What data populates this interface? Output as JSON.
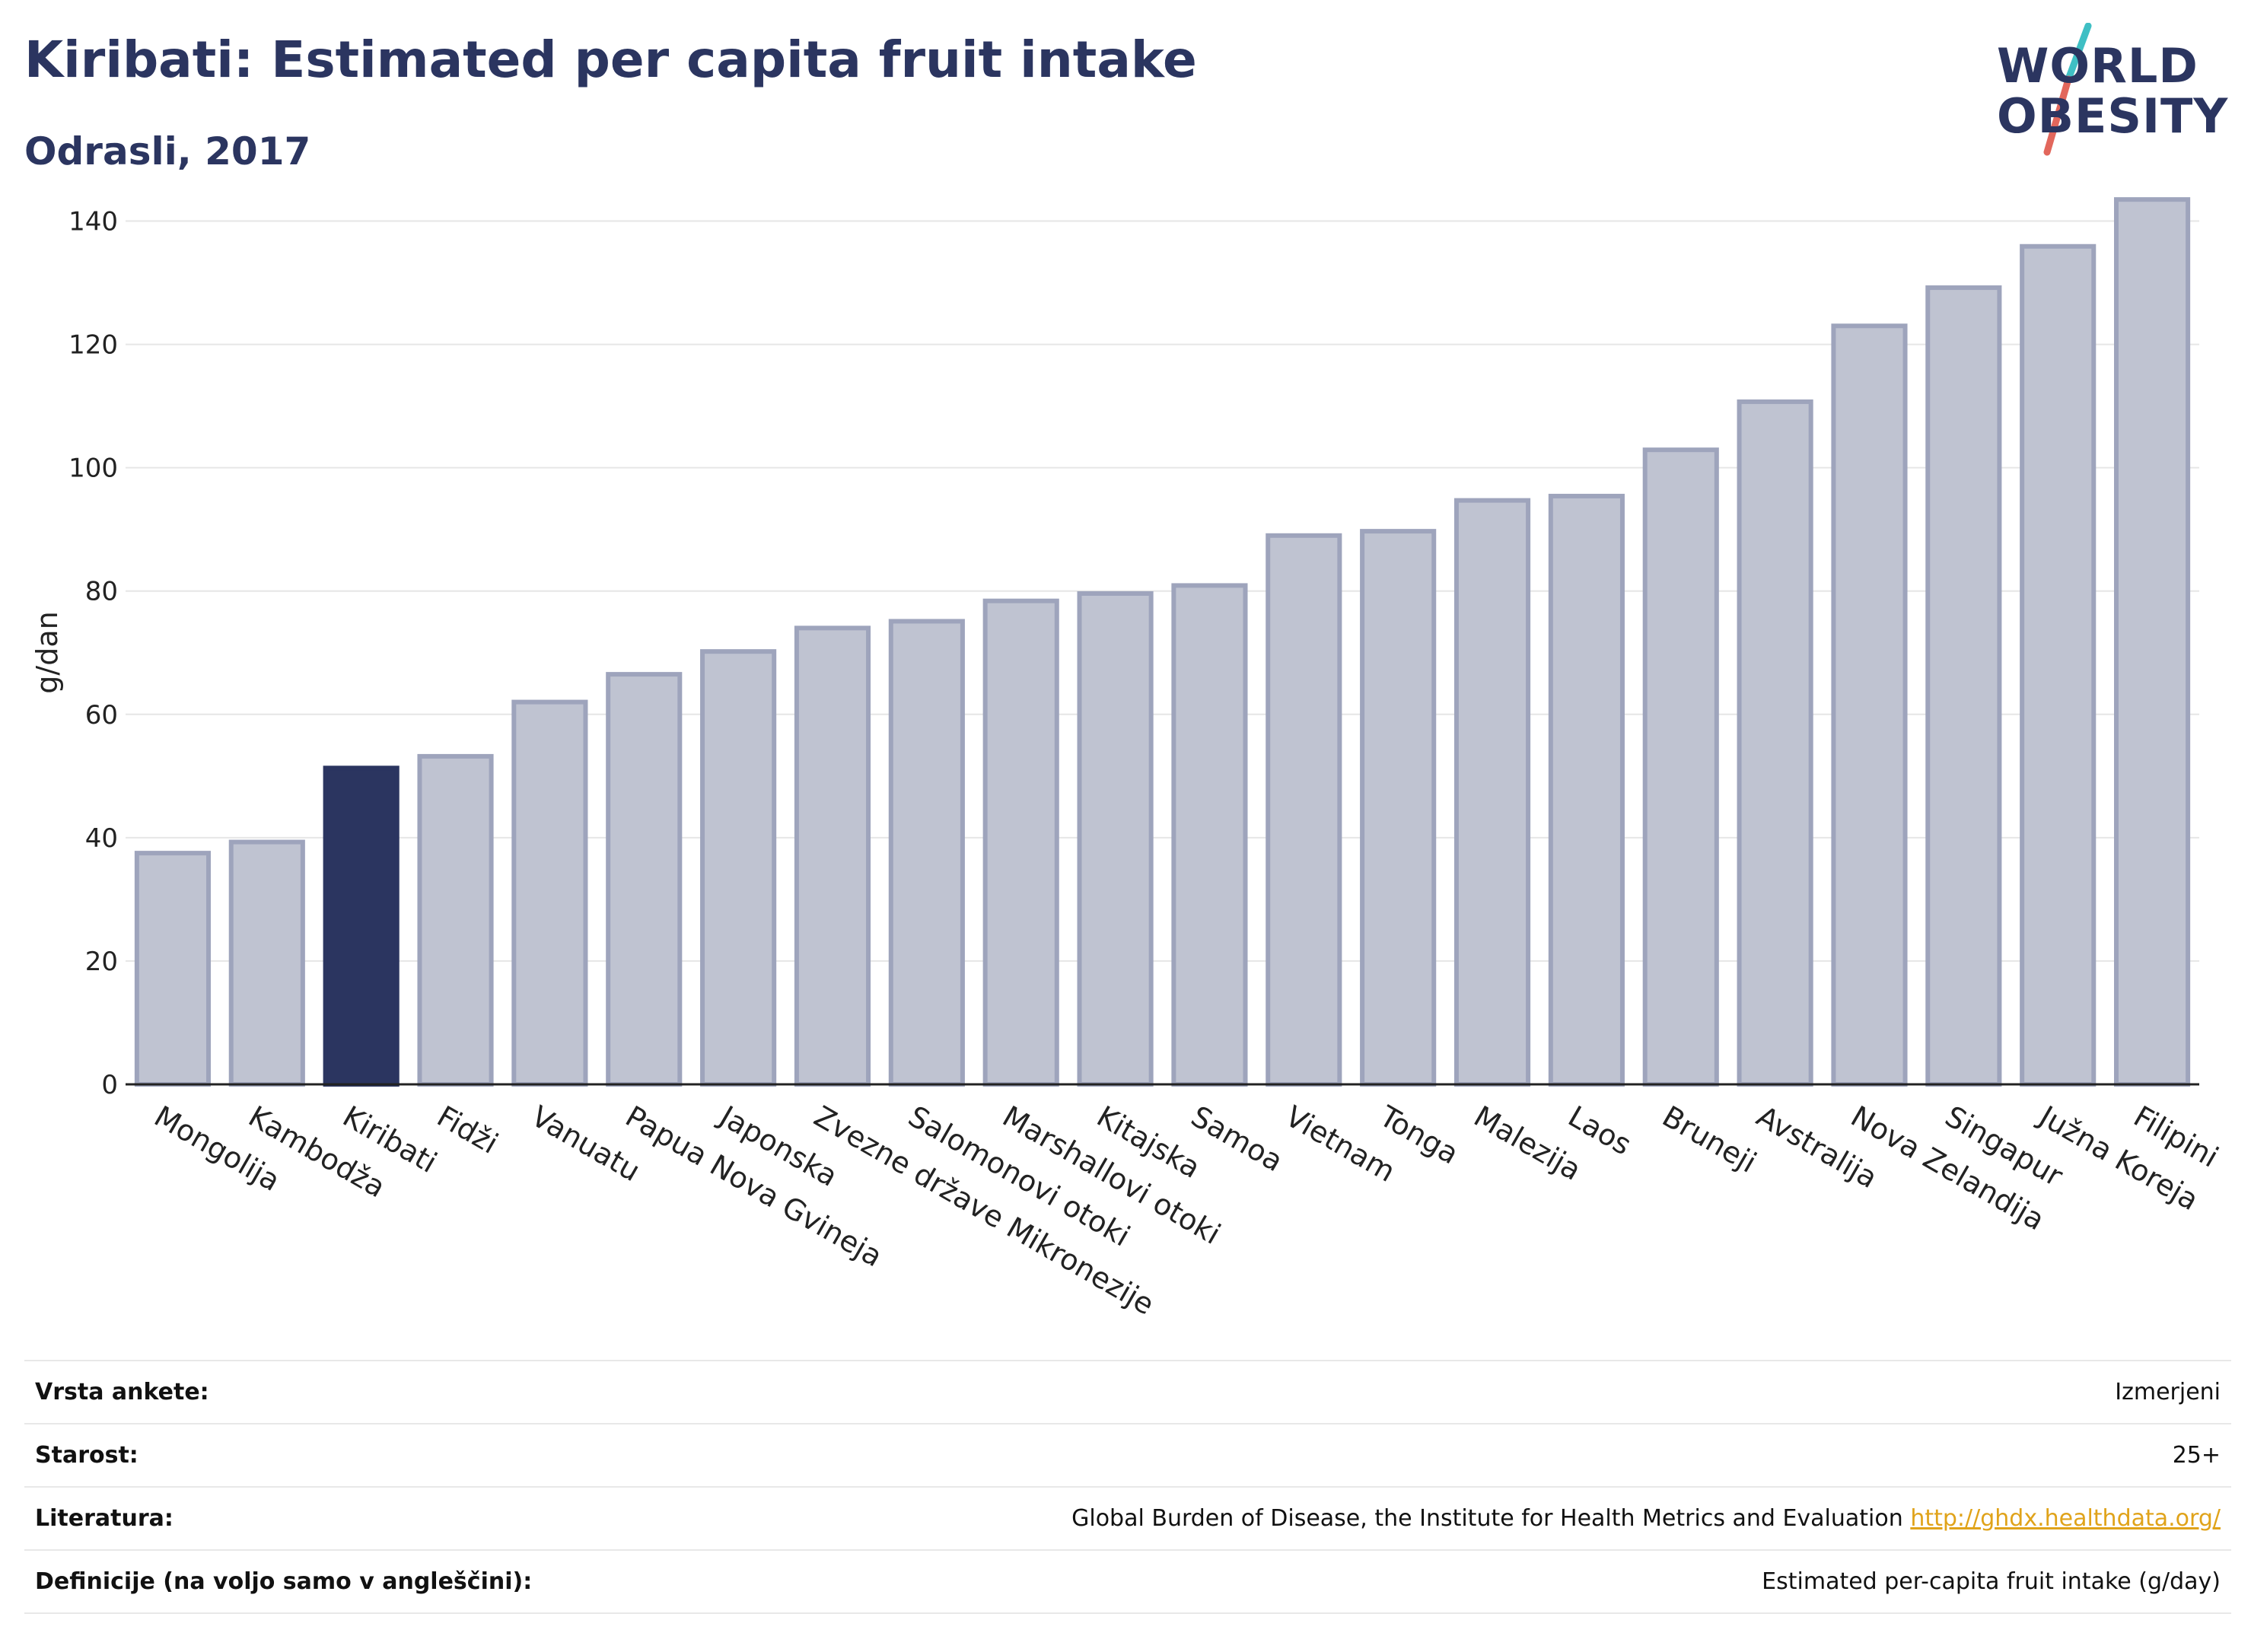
{
  "title": "Kiribati: Estimated per capita fruit intake",
  "subtitle": "Odrasli, 2017",
  "logo": {
    "line1": "WORLD",
    "line2": "OBESITY"
  },
  "colors": {
    "highlight": "#2b3560",
    "bar_fill": "#bfc3d1",
    "bar_stroke": "#9ea4bc",
    "link": "#e0a31a",
    "logo_teal": "#3fbfc4",
    "logo_red": "#e2675c"
  },
  "chart_data": {
    "type": "bar",
    "title": "Kiribati: Estimated per capita fruit intake",
    "subtitle": "Odrasli, 2017",
    "ylabel": "g/dan",
    "xlabel": "",
    "ylim": [
      0,
      145
    ],
    "yticks": [
      0,
      20,
      40,
      60,
      80,
      100,
      120,
      140
    ],
    "grid": true,
    "highlight": "Kiribati",
    "categories": [
      "Mongolija",
      "Kambodža",
      "Kiribati",
      "Fidži",
      "Vanuatu",
      "Papua Nova Gvineja",
      "Japonska",
      "Zvezne države Mikronezije",
      "Salomonovi otoki",
      "Marshallovi otoki",
      "Kitajska",
      "Samoa",
      "Vietnam",
      "Tonga",
      "Malezija",
      "Laos",
      "Bruneji",
      "Avstralija",
      "Nova Zelandija",
      "Singapur",
      "Južna Koreja",
      "Filipini"
    ],
    "values": [
      37.5,
      39.3,
      51.3,
      53.2,
      62,
      66.5,
      70.2,
      74,
      75.1,
      78.4,
      79.6,
      80.9,
      89,
      89.7,
      94.7,
      95.4,
      102.9,
      110.7,
      123,
      129.2,
      135.9,
      143.5
    ]
  },
  "info": [
    {
      "key": "Vrsta ankete:",
      "value": "Izmerjeni"
    },
    {
      "key": "Starost:",
      "value": "25+"
    },
    {
      "key": "Literatura:",
      "value": "Global Burden of Disease, the Institute for Health Metrics and Evaluation",
      "link": "http://ghdx.healthdata.org/"
    },
    {
      "key": "Definicije (na voljo samo v angleščini):",
      "value": "Estimated per-capita fruit intake (g/day)"
    }
  ]
}
